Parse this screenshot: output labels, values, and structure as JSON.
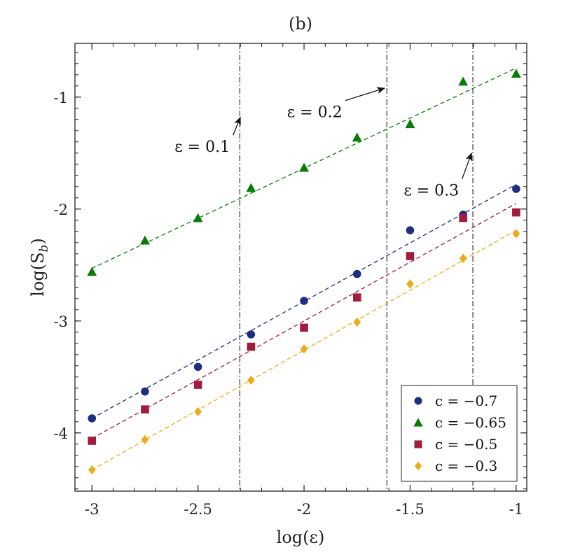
{
  "chart_data": {
    "type": "scatter",
    "title": "(b)",
    "xlabel": "log(ε)",
    "ylabel": "log(S_b)",
    "xlim": [
      -3.08,
      -0.95
    ],
    "ylim": [
      -4.52,
      -0.52
    ],
    "x_ticks": [
      -3,
      -2.5,
      -2,
      -1.5,
      -1
    ],
    "x_tick_labels": [
      "-3",
      "-2.5",
      "-2",
      "-1.5",
      "-1"
    ],
    "y_ticks": [
      -4,
      -3,
      -2,
      -1
    ],
    "y_tick_labels": [
      "-4",
      "-3",
      "-2",
      "-1"
    ],
    "legend_position": "bottom-right",
    "x": [
      -3,
      -2.75,
      -2.5,
      -2.25,
      -2,
      -1.75,
      -1.5,
      -1.25,
      -1
    ],
    "series": [
      {
        "name": "c = −0.7",
        "marker": "circle",
        "color": "#1c2f80",
        "values": [
          -3.87,
          -3.63,
          -3.41,
          -3.12,
          -2.82,
          -2.58,
          -2.19,
          -2.05,
          -1.82
        ],
        "fit": [
          -3.87,
          -1.78
        ]
      },
      {
        "name": "c = −0.65",
        "marker": "triangle",
        "color": "#0a7a0a",
        "values": [
          -2.56,
          -2.28,
          -2.08,
          -1.81,
          -1.63,
          -1.36,
          -1.24,
          -0.86,
          -0.79
        ],
        "fit": [
          -2.53,
          -0.74
        ]
      },
      {
        "name": "c = −0.5",
        "marker": "square",
        "color": "#a01c3c",
        "values": [
          -4.07,
          -3.79,
          -3.57,
          -3.23,
          -3.06,
          -2.79,
          -2.42,
          -2.08,
          -2.03
        ],
        "fit": [
          -4.05,
          -1.95
        ]
      },
      {
        "name": "c = −0.3",
        "marker": "diamond",
        "color": "#e8ac1c",
        "values": [
          -4.33,
          -4.06,
          -3.81,
          -3.53,
          -3.25,
          -3.01,
          -2.67,
          -2.44,
          -2.22
        ],
        "fit": [
          -4.33,
          -2.19
        ]
      }
    ],
    "vertical_lines": [
      {
        "x": -2.3026,
        "label": "ε = 0.1",
        "label_at": [
          -2.48,
          -1.49
        ],
        "arrow_to": [
          -2.3,
          -1.18
        ]
      },
      {
        "x": -1.6094,
        "label": "ε = 0.2",
        "label_at": [
          -1.95,
          -1.18
        ],
        "arrow_to": [
          -1.62,
          -0.92
        ]
      },
      {
        "x": -1.204,
        "label": "ε = 0.3",
        "label_at": [
          -1.4,
          -1.88
        ],
        "arrow_to": [
          -1.21,
          -1.5
        ]
      }
    ]
  }
}
